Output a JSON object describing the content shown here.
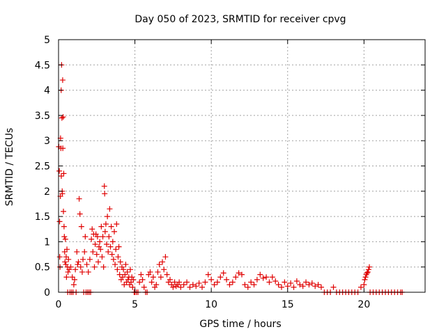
{
  "chart_data": {
    "type": "scatter",
    "title": "Day 050 of 2023, SRMTID for receiver cpvg",
    "xlabel": "GPS time / hours",
    "ylabel": "SRMTID / TECUs",
    "xlim": [
      0,
      24
    ],
    "ylim": [
      0,
      5
    ],
    "x_ticks": [
      0,
      5,
      10,
      15,
      20
    ],
    "y_ticks": [
      0,
      0.5,
      1,
      1.5,
      2,
      2.5,
      3,
      3.5,
      4,
      4.5,
      5
    ],
    "x_tick_labels": [
      "0",
      "5",
      "10",
      "15",
      "20"
    ],
    "y_tick_labels": [
      "0",
      "0.5",
      "1",
      "1.5",
      "2",
      "2.5",
      "3",
      "3.5",
      "4",
      "4.5",
      "5"
    ],
    "grid": true,
    "marker": "+",
    "series": [
      {
        "name": "SRMTID",
        "color": "#e00000",
        "points": [
          [
            0.02,
            2.88
          ],
          [
            0.05,
            2.4
          ],
          [
            0.07,
            1.4
          ],
          [
            0.08,
            0.7
          ],
          [
            0.1,
            0.5
          ],
          [
            0.12,
            1.9
          ],
          [
            0.13,
            3.05
          ],
          [
            0.15,
            2.85
          ],
          [
            0.17,
            4.0
          ],
          [
            0.18,
            2.3
          ],
          [
            0.2,
            4.5
          ],
          [
            0.22,
            3.45
          ],
          [
            0.24,
            2.0
          ],
          [
            0.25,
            1.95
          ],
          [
            0.27,
            4.2
          ],
          [
            0.28,
            2.85
          ],
          [
            0.3,
            3.47
          ],
          [
            0.32,
            1.6
          ],
          [
            0.34,
            2.35
          ],
          [
            0.36,
            1.3
          ],
          [
            0.38,
            1.1
          ],
          [
            0.4,
            0.8
          ],
          [
            0.42,
            0.6
          ],
          [
            0.45,
            1.05
          ],
          [
            0.48,
            0.55
          ],
          [
            0.5,
            0.7
          ],
          [
            0.52,
            0.3
          ],
          [
            0.55,
            0.85
          ],
          [
            0.58,
            0.5
          ],
          [
            0.6,
            0.0
          ],
          [
            0.62,
            0.4
          ],
          [
            0.65,
            0.65
          ],
          [
            0.7,
            0.45
          ],
          [
            0.75,
            0.0
          ],
          [
            0.8,
            0.5
          ],
          [
            0.85,
            0.0
          ],
          [
            0.9,
            0.3
          ],
          [
            0.95,
            0.0
          ],
          [
            1.0,
            0.15
          ],
          [
            1.05,
            0.25
          ],
          [
            1.1,
            0.45
          ],
          [
            1.15,
            0.0
          ],
          [
            1.2,
            0.8
          ],
          [
            1.25,
            0.55
          ],
          [
            1.3,
            0.6
          ],
          [
            1.35,
            1.85
          ],
          [
            1.4,
            1.55
          ],
          [
            1.45,
            0.5
          ],
          [
            1.5,
            1.3
          ],
          [
            1.55,
            0.4
          ],
          [
            1.6,
            0.65
          ],
          [
            1.65,
            0.0
          ],
          [
            1.7,
            0.8
          ],
          [
            1.75,
            1.1
          ],
          [
            1.8,
            0.0
          ],
          [
            1.85,
            0.55
          ],
          [
            1.9,
            0.0
          ],
          [
            1.95,
            0.4
          ],
          [
            2.0,
            0.0
          ],
          [
            2.05,
            0.65
          ],
          [
            2.1,
            0.0
          ],
          [
            2.15,
            1.05
          ],
          [
            2.2,
            1.25
          ],
          [
            2.25,
            0.8
          ],
          [
            2.3,
            1.15
          ],
          [
            2.35,
            0.5
          ],
          [
            2.4,
            0.95
          ],
          [
            2.45,
            1.15
          ],
          [
            2.5,
            0.75
          ],
          [
            2.55,
            1.1
          ],
          [
            2.6,
            0.6
          ],
          [
            2.65,
            0.9
          ],
          [
            2.7,
            1.0
          ],
          [
            2.75,
            0.85
          ],
          [
            2.8,
            1.3
          ],
          [
            2.85,
            0.7
          ],
          [
            2.9,
            1.1
          ],
          [
            2.95,
            0.5
          ],
          [
            3.0,
            2.1
          ],
          [
            3.02,
            1.95
          ],
          [
            3.05,
            1.2
          ],
          [
            3.1,
            1.35
          ],
          [
            3.15,
            0.95
          ],
          [
            3.2,
            1.5
          ],
          [
            3.25,
            0.8
          ],
          [
            3.3,
            1.1
          ],
          [
            3.35,
            1.65
          ],
          [
            3.4,
            0.9
          ],
          [
            3.45,
            1.3
          ],
          [
            3.5,
            0.75
          ],
          [
            3.55,
            1.0
          ],
          [
            3.6,
            0.65
          ],
          [
            3.65,
            1.2
          ],
          [
            3.7,
            0.55
          ],
          [
            3.75,
            0.85
          ],
          [
            3.8,
            1.35
          ],
          [
            3.85,
            0.45
          ],
          [
            3.9,
            0.7
          ],
          [
            3.95,
            0.9
          ],
          [
            4.0,
            0.35
          ],
          [
            4.05,
            0.6
          ],
          [
            4.1,
            0.25
          ],
          [
            4.15,
            0.5
          ],
          [
            4.2,
            0.3
          ],
          [
            4.25,
            0.45
          ],
          [
            4.3,
            0.15
          ],
          [
            4.35,
            0.35
          ],
          [
            4.4,
            0.55
          ],
          [
            4.45,
            0.2
          ],
          [
            4.5,
            0.4
          ],
          [
            4.55,
            0.25
          ],
          [
            4.6,
            0.3
          ],
          [
            4.65,
            0.15
          ],
          [
            4.7,
            0.45
          ],
          [
            4.75,
            0.2
          ],
          [
            4.8,
            0.3
          ],
          [
            4.85,
            0.1
          ],
          [
            4.9,
            0.25
          ],
          [
            4.95,
            0.0
          ],
          [
            5.0,
            0.0
          ],
          [
            5.1,
            0.0
          ],
          [
            5.2,
            0.0
          ],
          [
            5.3,
            0.2
          ],
          [
            5.4,
            0.35
          ],
          [
            5.5,
            0.25
          ],
          [
            5.6,
            0.1
          ],
          [
            5.7,
            0.0
          ],
          [
            5.8,
            0.0
          ],
          [
            5.9,
            0.35
          ],
          [
            6.0,
            0.4
          ],
          [
            6.1,
            0.2
          ],
          [
            6.2,
            0.3
          ],
          [
            6.3,
            0.1
          ],
          [
            6.4,
            0.15
          ],
          [
            6.5,
            0.4
          ],
          [
            6.6,
            0.55
          ],
          [
            6.7,
            0.3
          ],
          [
            6.8,
            0.6
          ],
          [
            6.9,
            0.45
          ],
          [
            7.0,
            0.7
          ],
          [
            7.1,
            0.35
          ],
          [
            7.2,
            0.2
          ],
          [
            7.3,
            0.25
          ],
          [
            7.4,
            0.15
          ],
          [
            7.5,
            0.1
          ],
          [
            7.6,
            0.2
          ],
          [
            7.7,
            0.12
          ],
          [
            7.8,
            0.15
          ],
          [
            7.9,
            0.2
          ],
          [
            8.0,
            0.1
          ],
          [
            8.2,
            0.15
          ],
          [
            8.4,
            0.2
          ],
          [
            8.6,
            0.1
          ],
          [
            8.8,
            0.15
          ],
          [
            9.0,
            0.12
          ],
          [
            9.2,
            0.18
          ],
          [
            9.4,
            0.1
          ],
          [
            9.6,
            0.2
          ],
          [
            9.8,
            0.35
          ],
          [
            10.0,
            0.25
          ],
          [
            10.2,
            0.15
          ],
          [
            10.4,
            0.2
          ],
          [
            10.6,
            0.3
          ],
          [
            10.8,
            0.38
          ],
          [
            11.0,
            0.25
          ],
          [
            11.2,
            0.15
          ],
          [
            11.4,
            0.2
          ],
          [
            11.6,
            0.3
          ],
          [
            11.8,
            0.38
          ],
          [
            12.0,
            0.35
          ],
          [
            12.2,
            0.15
          ],
          [
            12.4,
            0.1
          ],
          [
            12.6,
            0.2
          ],
          [
            12.8,
            0.15
          ],
          [
            13.0,
            0.25
          ],
          [
            13.2,
            0.35
          ],
          [
            13.4,
            0.28
          ],
          [
            13.6,
            0.3
          ],
          [
            13.8,
            0.2
          ],
          [
            14.0,
            0.3
          ],
          [
            14.2,
            0.22
          ],
          [
            14.4,
            0.15
          ],
          [
            14.6,
            0.1
          ],
          [
            14.8,
            0.2
          ],
          [
            15.0,
            0.12
          ],
          [
            15.2,
            0.18
          ],
          [
            15.4,
            0.1
          ],
          [
            15.6,
            0.22
          ],
          [
            15.8,
            0.15
          ],
          [
            16.0,
            0.12
          ],
          [
            16.2,
            0.2
          ],
          [
            16.4,
            0.15
          ],
          [
            16.6,
            0.18
          ],
          [
            16.8,
            0.12
          ],
          [
            17.0,
            0.15
          ],
          [
            17.2,
            0.1
          ],
          [
            17.4,
            0.0
          ],
          [
            17.6,
            0.0
          ],
          [
            17.8,
            0.0
          ],
          [
            18.0,
            0.1
          ],
          [
            18.2,
            0.0
          ],
          [
            18.4,
            0.0
          ],
          [
            18.6,
            0.0
          ],
          [
            18.8,
            0.0
          ],
          [
            19.0,
            0.0
          ],
          [
            19.2,
            0.0
          ],
          [
            19.4,
            0.0
          ],
          [
            19.6,
            0.0
          ],
          [
            19.8,
            0.1
          ],
          [
            20.0,
            0.15
          ],
          [
            20.05,
            0.25
          ],
          [
            20.1,
            0.3
          ],
          [
            20.15,
            0.35
          ],
          [
            20.2,
            0.38
          ],
          [
            20.25,
            0.4
          ],
          [
            20.3,
            0.45
          ],
          [
            20.35,
            0.5
          ],
          [
            20.4,
            0.0
          ],
          [
            20.6,
            0.0
          ],
          [
            20.8,
            0.0
          ],
          [
            21.0,
            0.0
          ],
          [
            21.2,
            0.0
          ],
          [
            21.4,
            0.0
          ],
          [
            21.6,
            0.0
          ],
          [
            21.8,
            0.0
          ],
          [
            22.0,
            0.0
          ],
          [
            22.2,
            0.0
          ],
          [
            22.4,
            0.0
          ],
          [
            22.5,
            0.0
          ]
        ]
      }
    ]
  }
}
